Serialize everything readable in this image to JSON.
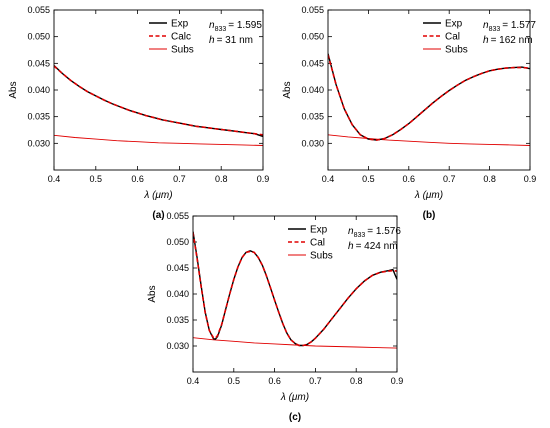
{
  "chart_data": [
    {
      "type": "line",
      "panel_label": "(a)",
      "xlabel": "λ (μm)",
      "ylabel": "Abs",
      "xlim": [
        0.4,
        0.9
      ],
      "ylim": [
        0.025,
        0.055
      ],
      "xticks": [
        "0.4",
        "0.5",
        "0.6",
        "0.7",
        "0.8",
        "0.9"
      ],
      "yticks": [
        "0.030",
        "0.035",
        "0.040",
        "0.045",
        "0.050",
        "0.055"
      ],
      "annotations": {
        "n_label": "n",
        "n_sub": "833",
        "n_value": "= 1.595",
        "h_label": "h",
        "h_value": "= 31 nm"
      },
      "legend_position": "top-right",
      "series": [
        {
          "name": "Exp",
          "color": "#000000",
          "style": "solid",
          "x": [
            0.4,
            0.42,
            0.44,
            0.46,
            0.48,
            0.5,
            0.52,
            0.54,
            0.56,
            0.58,
            0.6,
            0.62,
            0.64,
            0.66,
            0.68,
            0.7,
            0.72,
            0.74,
            0.76,
            0.78,
            0.8,
            0.82,
            0.84,
            0.86,
            0.88,
            0.9
          ],
          "y": [
            0.0446,
            0.0431,
            0.0418,
            0.0407,
            0.0397,
            0.0389,
            0.0381,
            0.0374,
            0.0368,
            0.0362,
            0.0357,
            0.0352,
            0.0348,
            0.0344,
            0.0341,
            0.0338,
            0.0335,
            0.0332,
            0.033,
            0.0328,
            0.0326,
            0.0324,
            0.0322,
            0.032,
            0.0318,
            0.0313
          ]
        },
        {
          "name": "Calc",
          "color": "#e00000",
          "style": "dashed",
          "x": [
            0.4,
            0.42,
            0.44,
            0.46,
            0.48,
            0.5,
            0.52,
            0.54,
            0.56,
            0.58,
            0.6,
            0.62,
            0.64,
            0.66,
            0.68,
            0.7,
            0.72,
            0.74,
            0.76,
            0.78,
            0.8,
            0.82,
            0.84,
            0.86,
            0.88,
            0.9
          ],
          "y": [
            0.0445,
            0.0431,
            0.0418,
            0.0407,
            0.0397,
            0.0389,
            0.0381,
            0.0374,
            0.0368,
            0.0362,
            0.0357,
            0.0352,
            0.0348,
            0.0344,
            0.0341,
            0.0338,
            0.0335,
            0.0332,
            0.033,
            0.0328,
            0.0326,
            0.0324,
            0.0322,
            0.032,
            0.0318,
            0.0316
          ]
        },
        {
          "name": "Subs",
          "color": "#e00000",
          "style": "thin",
          "x": [
            0.4,
            0.45,
            0.5,
            0.55,
            0.6,
            0.65,
            0.7,
            0.75,
            0.8,
            0.85,
            0.9
          ],
          "y": [
            0.0315,
            0.0311,
            0.0308,
            0.0305,
            0.0303,
            0.0301,
            0.03,
            0.0299,
            0.0298,
            0.0297,
            0.0296
          ]
        }
      ]
    },
    {
      "type": "line",
      "panel_label": "(b)",
      "xlabel": "λ (μm)",
      "ylabel": "Abs",
      "xlim": [
        0.4,
        0.9
      ],
      "ylim": [
        0.025,
        0.055
      ],
      "xticks": [
        "0.4",
        "0.5",
        "0.6",
        "0.7",
        "0.8",
        "0.9"
      ],
      "yticks": [
        "0.030",
        "0.035",
        "0.040",
        "0.045",
        "0.050",
        "0.055"
      ],
      "annotations": {
        "n_label": "n",
        "n_sub": "833",
        "n_value": "= 1.577",
        "h_label": "h",
        "h_value": "= 162 nm"
      },
      "legend_position": "top-right",
      "series": [
        {
          "name": "Exp",
          "color": "#000000",
          "style": "solid",
          "x": [
            0.4,
            0.42,
            0.44,
            0.46,
            0.48,
            0.5,
            0.52,
            0.54,
            0.56,
            0.58,
            0.6,
            0.62,
            0.64,
            0.66,
            0.68,
            0.7,
            0.72,
            0.74,
            0.76,
            0.78,
            0.8,
            0.82,
            0.84,
            0.86,
            0.88,
            0.9
          ],
          "y": [
            0.0468,
            0.041,
            0.0365,
            0.0335,
            0.0316,
            0.0308,
            0.0306,
            0.0309,
            0.0316,
            0.0326,
            0.0337,
            0.035,
            0.0363,
            0.0376,
            0.0388,
            0.0399,
            0.0409,
            0.0418,
            0.0425,
            0.0431,
            0.0436,
            0.0439,
            0.0441,
            0.0442,
            0.0443,
            0.044
          ]
        },
        {
          "name": "Cal",
          "color": "#e00000",
          "style": "dashed",
          "x": [
            0.4,
            0.42,
            0.44,
            0.46,
            0.48,
            0.5,
            0.52,
            0.54,
            0.56,
            0.58,
            0.6,
            0.62,
            0.64,
            0.66,
            0.68,
            0.7,
            0.72,
            0.74,
            0.76,
            0.78,
            0.8,
            0.82,
            0.84,
            0.86,
            0.88,
            0.9
          ],
          "y": [
            0.0466,
            0.041,
            0.0365,
            0.0335,
            0.0316,
            0.0308,
            0.0306,
            0.0309,
            0.0316,
            0.0326,
            0.0337,
            0.035,
            0.0363,
            0.0376,
            0.0388,
            0.0399,
            0.0409,
            0.0418,
            0.0425,
            0.0431,
            0.0436,
            0.0439,
            0.0441,
            0.0442,
            0.0442,
            0.0441
          ]
        },
        {
          "name": "Subs",
          "color": "#e00000",
          "style": "thin",
          "x": [
            0.4,
            0.45,
            0.5,
            0.55,
            0.6,
            0.65,
            0.7,
            0.75,
            0.8,
            0.85,
            0.9
          ],
          "y": [
            0.0316,
            0.0312,
            0.0309,
            0.0306,
            0.0304,
            0.0302,
            0.03,
            0.0299,
            0.0298,
            0.0297,
            0.0296
          ]
        }
      ]
    },
    {
      "type": "line",
      "panel_label": "(c)",
      "xlabel": "λ (μm)",
      "ylabel": "Abs",
      "xlim": [
        0.4,
        0.9
      ],
      "ylim": [
        0.025,
        0.055
      ],
      "xticks": [
        "0.4",
        "0.5",
        "0.6",
        "0.7",
        "0.8",
        "0.9"
      ],
      "yticks": [
        "0.030",
        "0.035",
        "0.040",
        "0.045",
        "0.050",
        "0.055"
      ],
      "annotations": {
        "n_label": "n",
        "n_sub": "833",
        "n_value": "= 1.576",
        "h_label": "h",
        "h_value": "= 424 nm"
      },
      "legend_position": "top-right",
      "series": [
        {
          "name": "Exp",
          "color": "#000000",
          "style": "solid",
          "x": [
            0.4,
            0.41,
            0.42,
            0.43,
            0.44,
            0.45,
            0.455,
            0.46,
            0.47,
            0.48,
            0.49,
            0.5,
            0.51,
            0.52,
            0.53,
            0.54,
            0.55,
            0.56,
            0.57,
            0.58,
            0.59,
            0.6,
            0.61,
            0.62,
            0.63,
            0.64,
            0.65,
            0.66,
            0.67,
            0.68,
            0.69,
            0.7,
            0.72,
            0.74,
            0.76,
            0.78,
            0.8,
            0.82,
            0.84,
            0.86,
            0.88,
            0.89,
            0.9
          ],
          "y": [
            0.052,
            0.047,
            0.0415,
            0.0365,
            0.033,
            0.0314,
            0.0313,
            0.0318,
            0.034,
            0.037,
            0.04,
            0.0428,
            0.0452,
            0.047,
            0.048,
            0.0483,
            0.048,
            0.047,
            0.0455,
            0.0435,
            0.0412,
            0.0388,
            0.0365,
            0.0343,
            0.0325,
            0.0312,
            0.0305,
            0.0301,
            0.0301,
            0.0303,
            0.0308,
            0.0315,
            0.0332,
            0.0352,
            0.0372,
            0.0392,
            0.041,
            0.0425,
            0.0436,
            0.0442,
            0.0445,
            0.0447,
            0.0428
          ]
        },
        {
          "name": "Cal",
          "color": "#e00000",
          "style": "dashed",
          "x": [
            0.4,
            0.41,
            0.42,
            0.43,
            0.44,
            0.45,
            0.455,
            0.46,
            0.47,
            0.48,
            0.49,
            0.5,
            0.51,
            0.52,
            0.53,
            0.54,
            0.55,
            0.56,
            0.57,
            0.58,
            0.59,
            0.6,
            0.61,
            0.62,
            0.63,
            0.64,
            0.65,
            0.66,
            0.67,
            0.68,
            0.69,
            0.7,
            0.72,
            0.74,
            0.76,
            0.78,
            0.8,
            0.82,
            0.84,
            0.86,
            0.88,
            0.89,
            0.9
          ],
          "y": [
            0.0518,
            0.0468,
            0.0413,
            0.0364,
            0.033,
            0.0316,
            0.0315,
            0.032,
            0.0341,
            0.037,
            0.04,
            0.0428,
            0.0452,
            0.047,
            0.048,
            0.0482,
            0.048,
            0.047,
            0.0455,
            0.0435,
            0.0412,
            0.0388,
            0.0365,
            0.0343,
            0.0325,
            0.0312,
            0.0305,
            0.0301,
            0.0301,
            0.0303,
            0.0308,
            0.0315,
            0.0332,
            0.0352,
            0.0372,
            0.0392,
            0.041,
            0.0425,
            0.0436,
            0.0442,
            0.0444,
            0.0445,
            0.0444
          ]
        },
        {
          "name": "Subs",
          "color": "#e00000",
          "style": "thin",
          "x": [
            0.4,
            0.45,
            0.5,
            0.55,
            0.6,
            0.65,
            0.7,
            0.75,
            0.8,
            0.85,
            0.9
          ],
          "y": [
            0.0316,
            0.0312,
            0.0309,
            0.0306,
            0.0304,
            0.0302,
            0.03,
            0.0299,
            0.0298,
            0.0297,
            0.0296
          ]
        }
      ]
    }
  ]
}
